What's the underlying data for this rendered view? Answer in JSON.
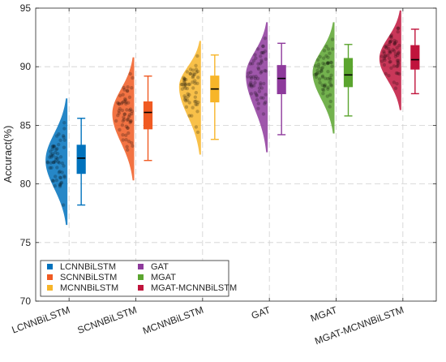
{
  "chart_data": {
    "type": "half-violin with boxplot",
    "title": "",
    "xlabel": "",
    "ylabel": "Accuract(%)",
    "ylim": [
      70,
      95
    ],
    "yticks": [
      70,
      75,
      80,
      85,
      90,
      95
    ],
    "grid": true,
    "legend_position": "bottom-left",
    "categories": [
      "LCNNBiLSTM",
      "SCNNBiLSTM",
      "MCNNBiLSTM",
      "GAT",
      "MGAT",
      "MGAT-MCNNBiLSTM"
    ],
    "series": [
      {
        "name": "LCNNBiLSTM",
        "color": "#0072BD",
        "median": 82.2,
        "q1": 80.9,
        "q3": 83.3,
        "whisker_low": 78.2,
        "whisker_high": 85.6,
        "violin_min": 76.5,
        "violin_max": 87.3,
        "violin_mode": 82.0
      },
      {
        "name": "SCNNBiLSTM",
        "color": "#F05A22",
        "median": 86.1,
        "q1": 84.7,
        "q3": 87.0,
        "whisker_low": 82.0,
        "whisker_high": 89.2,
        "violin_min": 80.3,
        "violin_max": 90.8,
        "violin_mode": 86.0
      },
      {
        "name": "MCNNBiLSTM",
        "color": "#F7B529",
        "median": 88.1,
        "q1": 87.0,
        "q3": 89.2,
        "whisker_low": 83.8,
        "whisker_high": 91.0,
        "violin_min": 82.5,
        "violin_max": 92.2,
        "violin_mode": 88.3
      },
      {
        "name": "GAT",
        "color": "#8E3A9C",
        "median": 89.0,
        "q1": 87.7,
        "q3": 90.1,
        "whisker_low": 84.2,
        "whisker_high": 92.0,
        "violin_min": 82.7,
        "violin_max": 93.8,
        "violin_mode": 89.3
      },
      {
        "name": "MGAT",
        "color": "#5BA52F",
        "median": 89.3,
        "q1": 88.3,
        "q3": 90.7,
        "whisker_low": 85.8,
        "whisker_high": 91.9,
        "violin_min": 84.3,
        "violin_max": 93.8,
        "violin_mode": 89.5
      },
      {
        "name": "MGAT-MCNNBiLSTM",
        "color": "#C0143C",
        "median": 90.6,
        "q1": 89.8,
        "q3": 91.8,
        "whisker_low": 87.7,
        "whisker_high": 93.2,
        "violin_min": 86.3,
        "violin_max": 94.8,
        "violin_mode": 90.7
      }
    ]
  }
}
